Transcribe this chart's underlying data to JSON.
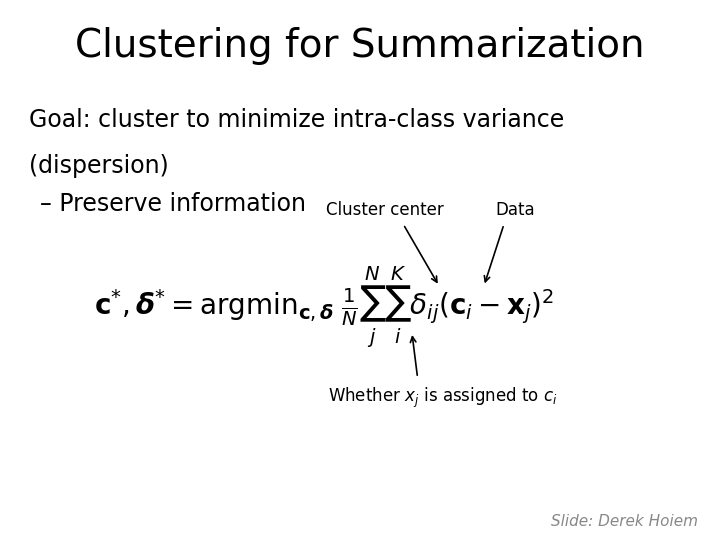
{
  "title": "Clustering for Summarization",
  "goal_line1": "Goal: cluster to minimize intra-class variance",
  "goal_line2": "(dispersion)",
  "bullet": "– Preserve information",
  "label_cluster_center": "Cluster center",
  "label_data": "Data",
  "credit": "Slide: Derek Hoiem",
  "bg_color": "#ffffff",
  "text_color": "#000000",
  "title_fontsize": 28,
  "body_fontsize": 17,
  "bullet_fontsize": 17,
  "formula_fontsize": 20,
  "annotation_fontsize": 12,
  "credit_fontsize": 11
}
